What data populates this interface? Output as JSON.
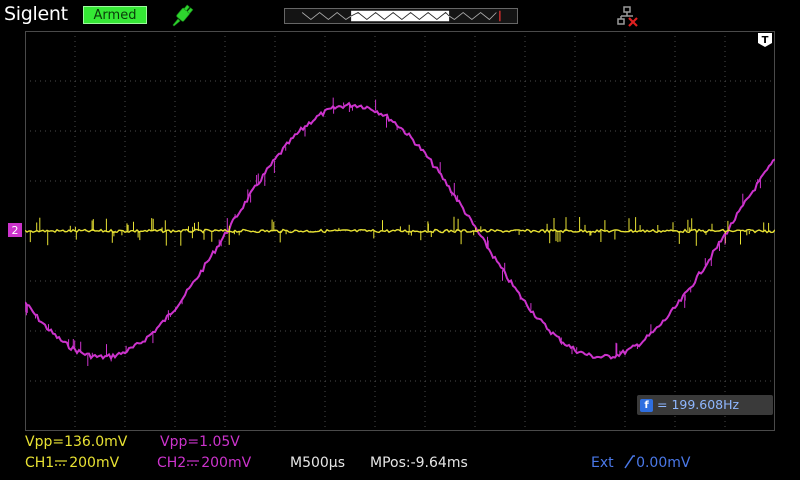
{
  "header": {
    "brand": "Siglent",
    "status": "Armed",
    "usb_icon": "usb-plug-icon",
    "net_icon": "network-disconnected-icon"
  },
  "screen": {
    "background": "#000000",
    "grid_color": "#4a4a4a",
    "ch1_color": "#e8e233",
    "ch2_color": "#cc33cc",
    "ch2_marker": "2",
    "trigger_marker": "T"
  },
  "waveform": {
    "ch1_shape": "flat noisy line",
    "ch2_shape": "sine",
    "ch2_cycles_on_screen": 1.5
  },
  "frequency_box": {
    "icon_label": "f",
    "text": "= 199.608Hz"
  },
  "measurements": {
    "ch1_vpp": "Vpp=136.0mV",
    "ch2_vpp": "Vpp=1.05V"
  },
  "channels": {
    "ch1_label": "CH1",
    "ch1_scale": "200mV",
    "ch2_label": "CH2",
    "ch2_scale": "200mV"
  },
  "timebase": {
    "main": "M500μs",
    "position": "MPos:-9.64ms"
  },
  "trigger": {
    "source": "Ext",
    "level": "0.00mV"
  }
}
